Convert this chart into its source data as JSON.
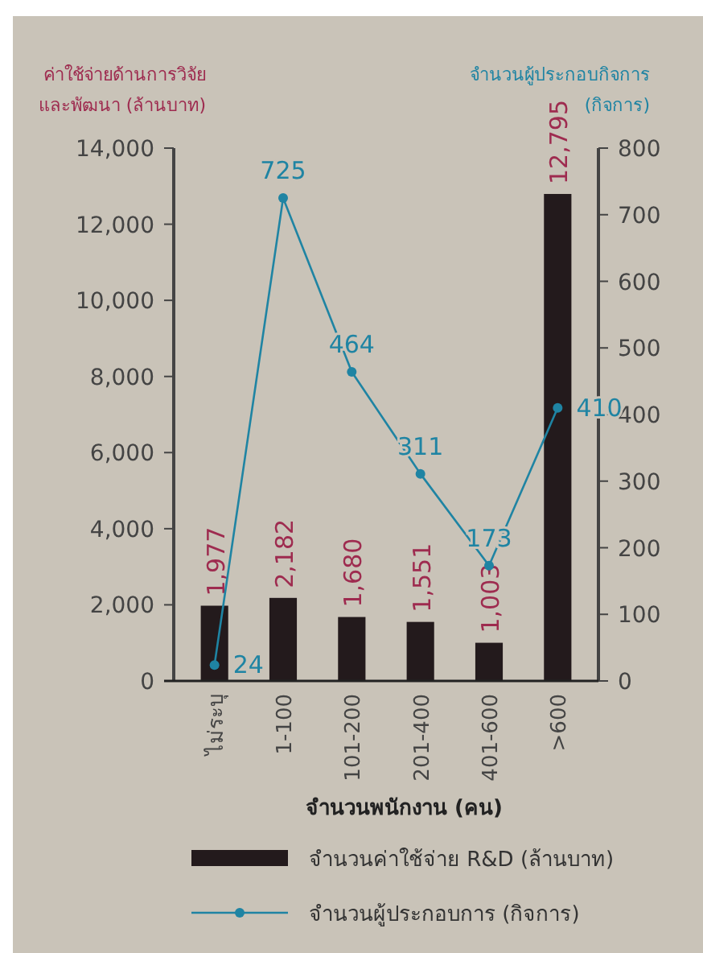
{
  "chart_data": {
    "type": "bar",
    "categories": [
      "ไม่ระบุ",
      "1-100",
      "101-200",
      "201-400",
      "401-600",
      ">600"
    ],
    "ylabel": "ค่าใช้จ่ายด้านการวิจัย\nและพัฒนา (ล้านบาท)",
    "y2label": "จำนวนผู้ประกอบกิจการ\n(กิจการ)",
    "xlabel": "จำนวนพนักงาน (คน)",
    "series": [
      {
        "name": "จำนวนค่าใช้จ่าย R&D (ล้านบาท)",
        "color": "#231a1c",
        "values": [
          1977,
          2182,
          1680,
          1551,
          1003,
          12795
        ],
        "value_labels": [
          "1,977",
          "2,182",
          "1,680",
          "1,551",
          "1,003",
          "12,795"
        ]
      },
      {
        "name": "จำนวนผู้ประกอบการ (กิจการ)",
        "type": "line",
        "axis": "y2",
        "color": "#1f84a3",
        "marker": "circle",
        "values": [
          24,
          725,
          464,
          311,
          173,
          410
        ],
        "value_labels": [
          "24",
          "725",
          "464",
          "311",
          "173",
          "410"
        ]
      }
    ],
    "ylim": [
      0,
      14000
    ],
    "yticks": [
      {
        "value": 0,
        "label": "0"
      },
      {
        "value": 2000,
        "label": "2,000"
      },
      {
        "value": 4000,
        "label": "4,000"
      },
      {
        "value": 6000,
        "label": "6,000"
      },
      {
        "value": 8000,
        "label": "8,000"
      },
      {
        "value": 10000,
        "label": "10,000"
      },
      {
        "value": 12000,
        "label": "12,000"
      },
      {
        "value": 14000,
        "label": "14,000"
      }
    ],
    "y2lim": [
      0,
      800
    ],
    "y2ticks": [
      0,
      100,
      200,
      300,
      400,
      500,
      600,
      700,
      800
    ],
    "legend": "bottom"
  }
}
